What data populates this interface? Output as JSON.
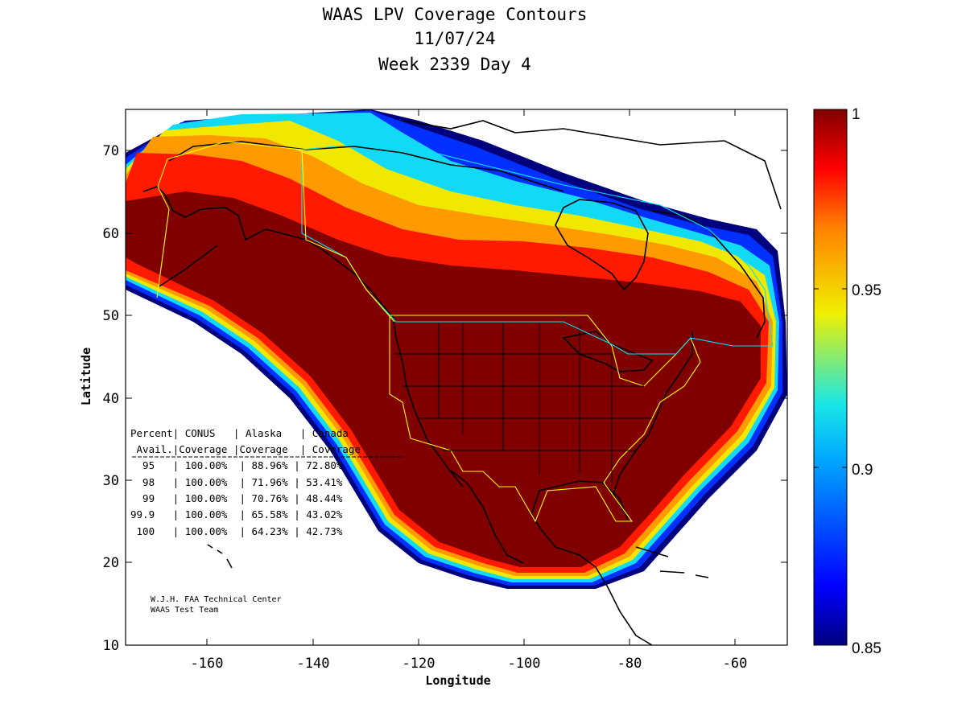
{
  "title": {
    "line1": "WAAS LPV Coverage Contours",
    "line2": "11/07/24",
    "line3": "Week 2339 Day 4"
  },
  "axes": {
    "xlabel": "Longitude",
    "ylabel": "Latitude",
    "xlim": [
      -175,
      -50
    ],
    "ylim": [
      10,
      75
    ],
    "xticks": [
      "-160",
      "-140",
      "-120",
      "-100",
      "-80",
      "-60"
    ],
    "yticks": [
      "70",
      "60",
      "50",
      "40",
      "30",
      "20",
      "10"
    ]
  },
  "colorbar": {
    "range": [
      0.85,
      1
    ],
    "ticks": [
      "1",
      "0.95",
      "0.9",
      "0.85"
    ],
    "colormap": "jet"
  },
  "table": {
    "header1": "Percent| CONUS   | Alaska   | Canada",
    "header2": " Avail.|Coverage |Coverage  | Coverage",
    "divider": "------------------------------------",
    "rows": [
      "  95   | 100.00%  | 88.96% | 72.80%",
      "  98   | 100.00%  | 71.96% | 53.41%",
      "  99   | 100.00%  | 70.76% | 48.44%",
      "99.9   | 100.00%  | 65.58% | 43.02%",
      " 100   | 100.00%  | 64.23% | 42.73%"
    ]
  },
  "credit": {
    "line1": "W.J.H. FAA Technical Center",
    "line2": "WAAS Test Team"
  },
  "chart_data": {
    "type": "heatmap",
    "title": "WAAS LPV Coverage Contours",
    "xlabel": "Longitude",
    "ylabel": "Latitude",
    "xlim": [
      -175,
      -50
    ],
    "ylim": [
      10,
      75
    ],
    "color_range": [
      0.85,
      1
    ],
    "colors": {
      "core": "#800000",
      "red": "#ff1a00",
      "orange": "#ff9a00",
      "yellow": "#f5f000",
      "cyan": "#12d9f5",
      "blue": "#0030ff",
      "navy": "#00007f"
    },
    "coverage_table": {
      "columns": [
        "Percent Avail.",
        "CONUS Coverage",
        "Alaska Coverage",
        "Canada Coverage"
      ],
      "rows": [
        [
          "95",
          "100.00%",
          "88.96%",
          "72.80%"
        ],
        [
          "98",
          "100.00%",
          "71.96%",
          "53.41%"
        ],
        [
          "99",
          "100.00%",
          "70.76%",
          "48.44%"
        ],
        [
          "99.9",
          "100.00%",
          "65.58%",
          "43.02%"
        ],
        [
          "100",
          "100.00%",
          "64.23%",
          "42.73%"
        ]
      ]
    }
  }
}
